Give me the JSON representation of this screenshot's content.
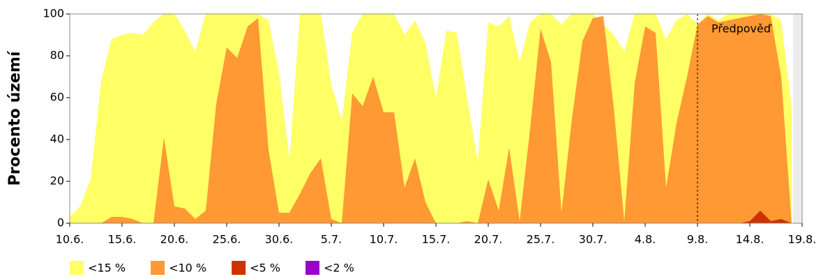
{
  "chart_data": {
    "type": "area",
    "y_label": "Procento území",
    "categories": [
      "10.6.",
      null,
      null,
      null,
      null,
      "15.6.",
      null,
      null,
      null,
      null,
      "20.6.",
      null,
      null,
      null,
      null,
      "25.6.",
      null,
      null,
      null,
      null,
      "30.6.",
      null,
      null,
      null,
      null,
      "5.7.",
      null,
      null,
      null,
      null,
      "10.7.",
      null,
      null,
      null,
      null,
      "15.7.",
      null,
      null,
      null,
      null,
      "20.7.",
      null,
      null,
      null,
      null,
      "25.7.",
      null,
      null,
      null,
      null,
      "30.7.",
      null,
      null,
      null,
      null,
      "4.8.",
      null,
      null,
      null,
      null,
      "9.8.",
      null,
      null,
      null,
      null,
      "14.8.",
      null,
      null,
      null,
      null,
      "19.8."
    ],
    "series": [
      {
        "name": "<15 %",
        "color": "#ffff66",
        "values": [
          3,
          8,
          21,
          68,
          88,
          90,
          91,
          90,
          96,
          100,
          100,
          92,
          82,
          100,
          100,
          100,
          100,
          100,
          100,
          97,
          72,
          30,
          100,
          100,
          100,
          66,
          49,
          91,
          100,
          100,
          100,
          100,
          90,
          97,
          86,
          60,
          92,
          91,
          59,
          29,
          96,
          94,
          99,
          77,
          96,
          100,
          100,
          95,
          100,
          100,
          100,
          95,
          90,
          82,
          100,
          100,
          100,
          88,
          97,
          100,
          95,
          100,
          97,
          100,
          100,
          100,
          100,
          100,
          97,
          55,
          null
        ]
      },
      {
        "name": "<10 %",
        "color": "#ff9933",
        "values": [
          0,
          0,
          0,
          0,
          3,
          3,
          2,
          0,
          0,
          41,
          8,
          7,
          2,
          6,
          57,
          84,
          79,
          94,
          98,
          35,
          5,
          5,
          14,
          24,
          31,
          2,
          0,
          62,
          56,
          70,
          53,
          53,
          17,
          31,
          10,
          0,
          0,
          0,
          1,
          0,
          21,
          6,
          36,
          1,
          45,
          93,
          77,
          5,
          50,
          87,
          98,
          99,
          55,
          1,
          67,
          94,
          91,
          17,
          48,
          70,
          95,
          99,
          96,
          97,
          98,
          99,
          100,
          99,
          70,
          0,
          null
        ]
      },
      {
        "name": "<5 %",
        "color": "#cc3300",
        "values": [
          0,
          0,
          0,
          0,
          0,
          0,
          0,
          0,
          0,
          0,
          0,
          0,
          0,
          0,
          0,
          0,
          0,
          0,
          0,
          0,
          0,
          0,
          0,
          0,
          0,
          0,
          0,
          0,
          0,
          0,
          0,
          0,
          0,
          0,
          0,
          0,
          0,
          0,
          0,
          0,
          0,
          0,
          0,
          0,
          0,
          0,
          0,
          0,
          0,
          0,
          0,
          0,
          0,
          0,
          0,
          0,
          0,
          0,
          0,
          0,
          0,
          0,
          0,
          0,
          0,
          1,
          6,
          1,
          2,
          0,
          null
        ]
      },
      {
        "name": "<2 %",
        "color": "#9900cc",
        "values": [
          0,
          0,
          0,
          0,
          0,
          0,
          0,
          0,
          0,
          0,
          0,
          0,
          0,
          0,
          0,
          0,
          0,
          0,
          0,
          0,
          0,
          0,
          0,
          0,
          0,
          0,
          0,
          0,
          0,
          0,
          0,
          0,
          0,
          0,
          0,
          0,
          0,
          0,
          0,
          0,
          0,
          0,
          0,
          0,
          0,
          0,
          0,
          0,
          0,
          0,
          0,
          0,
          0,
          0,
          0,
          0,
          0,
          0,
          0,
          0,
          0,
          0,
          0,
          0,
          0,
          0,
          0,
          0,
          0,
          0,
          null
        ]
      }
    ],
    "ylim": [
      0,
      100
    ],
    "yticks": [
      0,
      20,
      40,
      60,
      80,
      100
    ],
    "annotation": {
      "text": "Předpověď",
      "at": "9.8."
    },
    "no_data_color": "#ececec",
    "legend": "bottom"
  }
}
